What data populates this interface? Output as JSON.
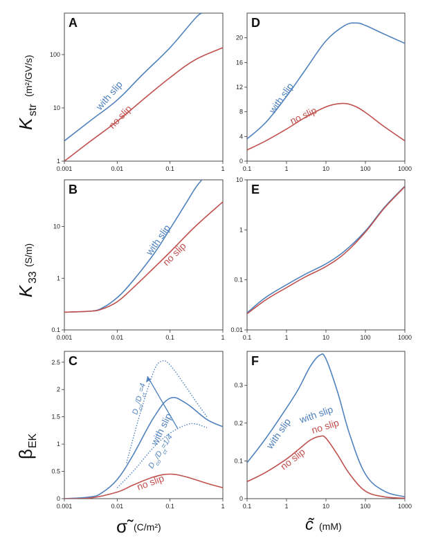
{
  "colors": {
    "blue": "#4f81bd",
    "red": "#c0504d",
    "axis": "#333333"
  },
  "labels": {
    "k_str_main": "K",
    "k_str_sub": "str",
    "k_str_unit": "(m²/GV/s)",
    "k33_main": "K",
    "k33_sub": "33",
    "k33_unit": "(S/m)",
    "beta_main": "β",
    "beta_sub": "EK",
    "sigma_xlabel": "σ̃",
    "sigma_unit": "(C/m²)",
    "c_xlabel": "c̃",
    "c_unit": "(mM)"
  },
  "chart_data": [
    {
      "panel": "A",
      "type": "line",
      "xscale": "log",
      "yscale": "log",
      "xlim": [
        0.001,
        1
      ],
      "ylim": [
        1,
        600
      ],
      "xticks": [
        "0.001",
        "0.01",
        "0.1",
        "1"
      ],
      "yticks": [
        "1",
        "10",
        "100"
      ],
      "series": [
        {
          "name": "with slip",
          "color": "blue",
          "x": [
            0.001,
            0.003,
            0.01,
            0.03,
            0.1,
            0.3,
            0.4
          ],
          "y": [
            2.4,
            5.6,
            14,
            42,
            135,
            480,
            600
          ]
        },
        {
          "name": "no slip",
          "color": "red",
          "x": [
            0.001,
            0.003,
            0.01,
            0.03,
            0.1,
            0.3,
            1
          ],
          "y": [
            1.0,
            2.3,
            5.6,
            14,
            37,
            80,
            135
          ]
        }
      ]
    },
    {
      "panel": "B",
      "type": "line",
      "xscale": "log",
      "yscale": "log",
      "xlim": [
        0.001,
        1
      ],
      "ylim": [
        0.1,
        80
      ],
      "xticks": [
        "0.001",
        "0.01",
        "0.1",
        "1"
      ],
      "yticks": [
        "0.1",
        "1",
        "10"
      ],
      "series": [
        {
          "name": "with slip",
          "color": "blue",
          "x": [
            0.001,
            0.003,
            0.005,
            0.01,
            0.02,
            0.05,
            0.1,
            0.2,
            0.3,
            0.4
          ],
          "y": [
            0.22,
            0.23,
            0.26,
            0.42,
            0.9,
            3,
            9,
            28,
            55,
            80
          ]
        },
        {
          "name": "no slip",
          "color": "red",
          "x": [
            0.001,
            0.003,
            0.005,
            0.01,
            0.02,
            0.05,
            0.1,
            0.3,
            1
          ],
          "y": [
            0.22,
            0.23,
            0.25,
            0.35,
            0.65,
            1.6,
            3.2,
            10,
            30
          ]
        }
      ]
    },
    {
      "panel": "C",
      "type": "line",
      "xscale": "log",
      "yscale": "linear",
      "xlim": [
        0.001,
        1
      ],
      "ylim": [
        0,
        2.7
      ],
      "xticks": [
        "0.001",
        "0.01",
        "0.1",
        "1"
      ],
      "yticks": [
        "0",
        "0.5",
        "1",
        "1.5",
        "2",
        "2.5"
      ],
      "series": [
        {
          "name": "with slip",
          "color": "blue",
          "style": "solid",
          "x": [
            0.001,
            0.003,
            0.005,
            0.01,
            0.02,
            0.05,
            0.1,
            0.2,
            0.5,
            1
          ],
          "y": [
            0,
            0.03,
            0.1,
            0.35,
            0.8,
            1.5,
            1.84,
            1.75,
            1.45,
            1.32
          ]
        },
        {
          "name": "no slip",
          "color": "red",
          "style": "solid",
          "x": [
            0.001,
            0.003,
            0.01,
            0.02,
            0.05,
            0.1,
            0.2,
            0.5,
            1
          ],
          "y": [
            0,
            0.01,
            0.12,
            0.25,
            0.4,
            0.45,
            0.4,
            0.28,
            0.2
          ]
        },
        {
          "name": "Dco/Dct=4",
          "color": "blue",
          "style": "dotted",
          "x": [
            0.015,
            0.02,
            0.03,
            0.05,
            0.07,
            0.1,
            0.2,
            0.3,
            0.5
          ],
          "y": [
            0.65,
            1.1,
            1.7,
            2.35,
            2.52,
            2.45,
            2.05,
            1.8,
            1.5
          ]
        },
        {
          "name": "Dco/Dct=1/4",
          "color": "blue",
          "style": "dotted",
          "x": [
            0.01,
            0.02,
            0.05,
            0.1,
            0.2,
            0.3,
            0.5
          ],
          "y": [
            0.2,
            0.5,
            0.95,
            1.2,
            1.35,
            1.37,
            1.3
          ]
        }
      ],
      "annotations": {
        "high": [
          "D",
          "co",
          "/D",
          "ct",
          "=4"
        ],
        "low": [
          "D",
          "co",
          "/D",
          "ct",
          "=1/4"
        ]
      }
    },
    {
      "panel": "D",
      "type": "line",
      "xscale": "log",
      "yscale": "linear",
      "xlim": [
        0.1,
        1000
      ],
      "ylim": [
        0,
        24
      ],
      "xticks": [
        "0.1",
        "1",
        "10",
        "100",
        "1000"
      ],
      "yticks": [
        "0",
        "4",
        "8",
        "12",
        "16",
        "20"
      ],
      "series": [
        {
          "name": "with slip",
          "color": "blue",
          "x": [
            0.1,
            0.3,
            1,
            3,
            10,
            30,
            60,
            100,
            300,
            1000
          ],
          "y": [
            3.6,
            6.3,
            10.5,
            14.8,
            19.5,
            22.0,
            22.4,
            22.0,
            20.6,
            19.1
          ]
        },
        {
          "name": "no slip",
          "color": "red",
          "x": [
            0.1,
            0.3,
            1,
            3,
            10,
            25,
            50,
            100,
            300,
            1000
          ],
          "y": [
            1.8,
            3.3,
            5.2,
            7.1,
            8.8,
            9.35,
            9.0,
            7.9,
            5.6,
            3.3
          ]
        }
      ]
    },
    {
      "panel": "E",
      "type": "line",
      "xscale": "log",
      "yscale": "log",
      "xlim": [
        0.1,
        1000
      ],
      "ylim": [
        0.01,
        10
      ],
      "xticks": [
        "0.1",
        "1",
        "10",
        "100",
        "1000"
      ],
      "yticks": [
        "0.01",
        "0.1",
        "1",
        "10"
      ],
      "series": [
        {
          "name": "with slip",
          "color": "blue",
          "x": [
            0.1,
            0.3,
            1,
            3,
            10,
            30,
            100,
            300,
            1000
          ],
          "y": [
            0.022,
            0.045,
            0.08,
            0.13,
            0.21,
            0.38,
            0.95,
            2.8,
            7.5
          ]
        },
        {
          "name": "no slip",
          "color": "red",
          "x": [
            0.1,
            0.3,
            1,
            3,
            10,
            30,
            100,
            300,
            1000
          ],
          "y": [
            0.021,
            0.04,
            0.07,
            0.115,
            0.185,
            0.34,
            0.9,
            2.7,
            7.3
          ]
        }
      ]
    },
    {
      "panel": "F",
      "type": "line",
      "xscale": "log",
      "yscale": "linear",
      "xlim": [
        0.1,
        1000
      ],
      "ylim": [
        0,
        0.39
      ],
      "xticks": [
        "0.1",
        "1",
        "10",
        "100",
        "1000"
      ],
      "yticks": [
        "0",
        "0.1",
        "0.2",
        "0.3"
      ],
      "series": [
        {
          "name": "with slip",
          "color": "blue",
          "x": [
            0.1,
            0.3,
            1,
            2,
            4,
            7,
            10,
            20,
            40,
            100,
            300,
            1000
          ],
          "y": [
            0.095,
            0.16,
            0.24,
            0.29,
            0.35,
            0.38,
            0.37,
            0.28,
            0.17,
            0.065,
            0.02,
            0.005
          ]
        },
        {
          "name": "no slip",
          "color": "red",
          "x": [
            0.1,
            0.3,
            1,
            2,
            4,
            7,
            10,
            20,
            40,
            100,
            300,
            1000
          ],
          "y": [
            0.045,
            0.07,
            0.105,
            0.13,
            0.155,
            0.165,
            0.16,
            0.115,
            0.065,
            0.02,
            0.005,
            0.001
          ]
        }
      ]
    }
  ]
}
